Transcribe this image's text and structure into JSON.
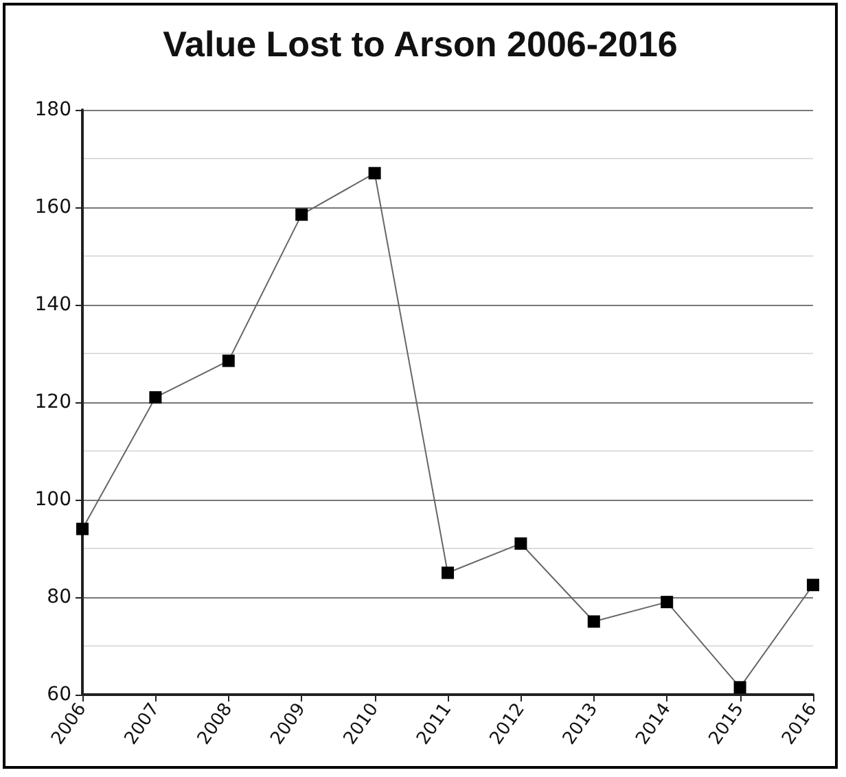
{
  "chart_data": {
    "type": "line",
    "title": "Value Lost to Arson 2006-2016",
    "categories": [
      "2006",
      "2007",
      "2008",
      "2009",
      "2010",
      "2011",
      "2012",
      "2013",
      "2014",
      "2015",
      "2016"
    ],
    "series": [
      {
        "color": "#000000",
        "values": [
          94,
          121,
          128.5,
          158.5,
          167,
          85,
          91,
          75,
          79,
          61.5,
          82.5
        ]
      }
    ],
    "ylim": [
      60,
      180
    ],
    "yticks": [
      60,
      80,
      100,
      120,
      140,
      160,
      180
    ],
    "grid": "y",
    "marker": "square",
    "line_style": "solid"
  }
}
